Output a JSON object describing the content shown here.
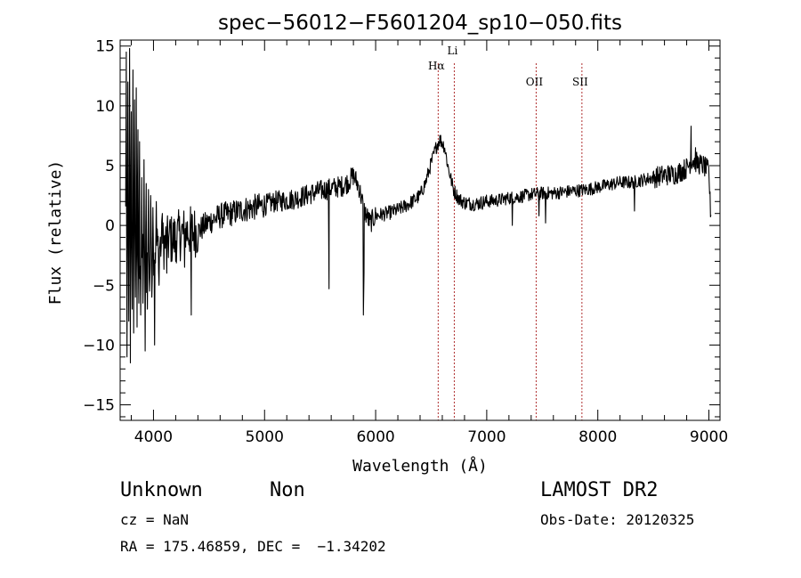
{
  "chart_data": {
    "type": "line",
    "title": "spec−56012−F5601204_sp10−050.fits",
    "xlabel": "Wavelength (Å)",
    "ylabel": "Flux (relative)",
    "xlim": [
      3700,
      9100
    ],
    "ylim": [
      -16.3,
      15.5
    ],
    "xticks": [
      4000,
      5000,
      6000,
      7000,
      8000,
      9000
    ],
    "yticks": [
      -15,
      -10,
      -5,
      0,
      5,
      10,
      15
    ],
    "ytick_labels": [
      "−15",
      "−10",
      "−5",
      "0",
      "5",
      "10",
      "15"
    ],
    "series": [
      {
        "name": "flux",
        "anchors": [
          [
            3750,
            0.5
          ],
          [
            3800,
            1.0
          ],
          [
            3850,
            -1.5
          ],
          [
            3900,
            -2.5
          ],
          [
            3950,
            -3.0
          ],
          [
            4000,
            -2.0
          ],
          [
            4100,
            -1.5
          ],
          [
            4200,
            -1.0
          ],
          [
            4300,
            -0.5
          ],
          [
            4400,
            -0.5
          ],
          [
            4500,
            0.3
          ],
          [
            4600,
            0.8
          ],
          [
            4700,
            1.0
          ],
          [
            4800,
            1.3
          ],
          [
            4900,
            1.5
          ],
          [
            5000,
            1.7
          ],
          [
            5100,
            2.0
          ],
          [
            5200,
            2.1
          ],
          [
            5300,
            2.3
          ],
          [
            5400,
            2.6
          ],
          [
            5500,
            2.9
          ],
          [
            5600,
            3.1
          ],
          [
            5700,
            3.3
          ],
          [
            5750,
            3.6
          ],
          [
            5800,
            4.2
          ],
          [
            5850,
            3.2
          ],
          [
            5900,
            1.2
          ],
          [
            5950,
            0.2
          ],
          [
            6000,
            0.8
          ],
          [
            6100,
            1.0
          ],
          [
            6200,
            1.3
          ],
          [
            6300,
            1.8
          ],
          [
            6400,
            2.5
          ],
          [
            6450,
            3.6
          ],
          [
            6500,
            5.2
          ],
          [
            6550,
            6.7
          ],
          [
            6580,
            7.2
          ],
          [
            6620,
            6.6
          ],
          [
            6650,
            5.0
          ],
          [
            6700,
            3.0
          ],
          [
            6750,
            2.2
          ],
          [
            6800,
            1.9
          ],
          [
            6900,
            1.8
          ],
          [
            7000,
            2.0
          ],
          [
            7100,
            2.1
          ],
          [
            7200,
            2.3
          ],
          [
            7300,
            2.4
          ],
          [
            7400,
            2.6
          ],
          [
            7500,
            2.7
          ],
          [
            7600,
            2.7
          ],
          [
            7700,
            2.8
          ],
          [
            7800,
            2.9
          ],
          [
            7900,
            3.0
          ],
          [
            8000,
            3.2
          ],
          [
            8100,
            3.4
          ],
          [
            8200,
            3.6
          ],
          [
            8300,
            3.6
          ],
          [
            8400,
            3.8
          ],
          [
            8500,
            4.0
          ],
          [
            8600,
            4.2
          ],
          [
            8700,
            4.3
          ],
          [
            8800,
            4.8
          ],
          [
            8850,
            5.5
          ],
          [
            8900,
            5.2
          ],
          [
            8950,
            5.0
          ],
          [
            9000,
            4.5
          ],
          [
            9010,
            2.0
          ],
          [
            9020,
            0.5
          ]
        ],
        "spikes": [
          [
            3755,
            14.5
          ],
          [
            3762,
            -11.0
          ],
          [
            3770,
            12.0
          ],
          [
            3778,
            -8.0
          ],
          [
            3785,
            14.8
          ],
          [
            3792,
            -11.5
          ],
          [
            3800,
            9.5
          ],
          [
            3808,
            -7.0
          ],
          [
            3815,
            13.0
          ],
          [
            3822,
            -9.0
          ],
          [
            3830,
            10.5
          ],
          [
            3838,
            -6.0
          ],
          [
            3845,
            11.5
          ],
          [
            3852,
            -8.5
          ],
          [
            3860,
            8.0
          ],
          [
            3868,
            -6.5
          ],
          [
            3875,
            7.0
          ],
          [
            3885,
            -7.5
          ],
          [
            3895,
            4.0
          ],
          [
            3905,
            -6.5
          ],
          [
            3915,
            5.5
          ],
          [
            3925,
            -10.5
          ],
          [
            3935,
            3.5
          ],
          [
            3945,
            -7.0
          ],
          [
            3955,
            3.0
          ],
          [
            3965,
            -5.5
          ],
          [
            3975,
            2.5
          ],
          [
            3985,
            -6.0
          ],
          [
            3995,
            1.5
          ],
          [
            4010,
            -10.0
          ],
          [
            4025,
            2.0
          ],
          [
            4050,
            -5.0
          ],
          [
            4080,
            1.0
          ],
          [
            4120,
            -4.0
          ],
          [
            4150,
            0.5
          ],
          [
            4200,
            -3.0
          ],
          [
            4280,
            -3.5
          ],
          [
            4340,
            -7.5
          ],
          [
            5580,
            -5.3
          ],
          [
            5890,
            -7.5
          ],
          [
            5895,
            -4.0
          ],
          [
            7230,
            0.0
          ],
          [
            7470,
            0.8
          ],
          [
            7530,
            0.2
          ],
          [
            8330,
            1.2
          ],
          [
            8840,
            8.3
          ],
          [
            8880,
            6.5
          ]
        ]
      }
    ],
    "vlines": [
      {
        "label": "Hα",
        "x": 6563
      },
      {
        "label": "Li",
        "x": 6708
      },
      {
        "label": "OII",
        "x": 7445
      },
      {
        "label": "SII",
        "x": 7857
      }
    ]
  },
  "footer": {
    "classification": "Unknown",
    "subclass": "Non",
    "survey": "LAMOST DR2",
    "redshift": "cz = NaN",
    "obs_date": "Obs-Date: 20120325",
    "coords": "RA = 175.46859, DEC =  −1.34202"
  }
}
